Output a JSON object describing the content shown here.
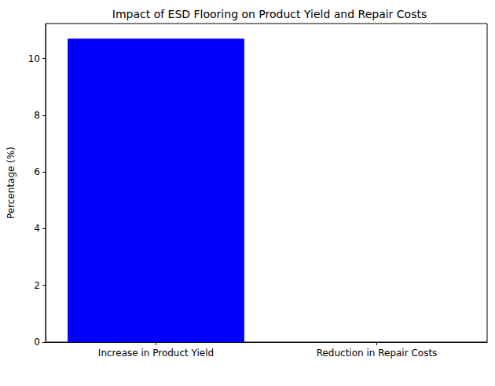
{
  "chart_data": {
    "type": "bar",
    "title": "Impact of ESD Flooring on Product Yield and Repair Costs",
    "categories": [
      "Increase in Product Yield",
      "Reduction in Repair Costs"
    ],
    "values": [
      10.7,
      0
    ],
    "color": "#0000ff",
    "y_label": "Percentage (%)",
    "ylim": [
      0,
      11.235
    ],
    "yticks": [
      0,
      2,
      4,
      6,
      8,
      10
    ],
    "grid": false
  }
}
